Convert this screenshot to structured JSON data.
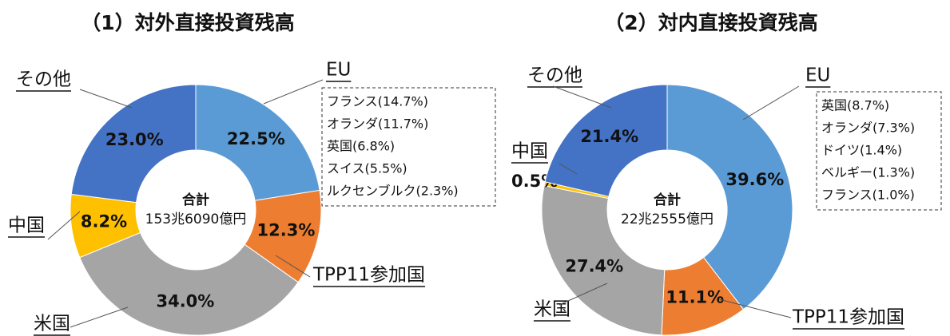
{
  "chart_data": [
    {
      "type": "donut",
      "title": "（1）対外直接投資残高",
      "categories": [
        "EU",
        "TPP11参加国",
        "米国",
        "中国",
        "その他"
      ],
      "values": [
        22.5,
        12.3,
        34.0,
        8.2,
        23.0
      ],
      "value_labels": [
        "22.5%",
        "12.3%",
        "34.0%",
        "8.2%",
        "23.0%"
      ],
      "colors": [
        "#5b9bd5",
        "#ed7d31",
        "#a5a5a5",
        "#ffc000",
        "#4472c4"
      ],
      "center_label": [
        "合計",
        "153兆6090億円"
      ],
      "breakdown": [
        "フランス(14.7%)",
        "オランダ(11.7%)",
        "英国(6.8%)",
        "スイス(5.5%)",
        "ルクセンブルク(2.3%)"
      ]
    },
    {
      "type": "donut",
      "title": "（2）対内直接投資残高",
      "categories": [
        "EU",
        "TPP11参加国",
        "米国",
        "中国",
        "その他"
      ],
      "values": [
        39.6,
        11.1,
        27.4,
        0.5,
        21.4
      ],
      "value_labels": [
        "39.6%",
        "11.1%",
        "27.4%",
        "0.5%",
        "21.4%"
      ],
      "colors": [
        "#5b9bd5",
        "#ed7d31",
        "#a5a5a5",
        "#ffc000",
        "#4472c4"
      ],
      "center_label": [
        "合計",
        "22兆2555億円"
      ],
      "breakdown": [
        "英国(8.7%)",
        "オランダ(7.3%)",
        "ドイツ(1.4%)",
        "ベルギー(1.3%)",
        "フランス(1.0%)"
      ]
    }
  ]
}
